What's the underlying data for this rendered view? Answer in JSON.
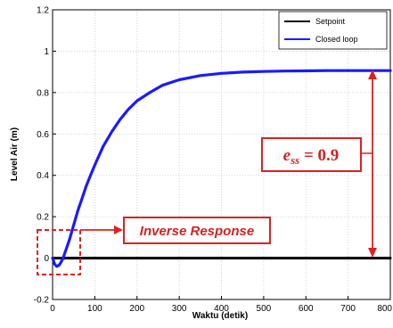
{
  "chart_data": {
    "type": "line",
    "title": "",
    "xlabel": "Waktu (detik)",
    "ylabel": "Level Air (m)",
    "xlim": [
      0,
      800
    ],
    "ylim": [
      -0.2,
      1.2
    ],
    "xticks": [
      "0",
      "100",
      "200",
      "300",
      "400",
      "500",
      "600",
      "700",
      "800"
    ],
    "yticks": [
      "-0.2",
      "0",
      "0.2",
      "0.4",
      "0.6",
      "0.8",
      "1",
      "1.2"
    ],
    "grid": true,
    "legend_position": "top-right",
    "series": [
      {
        "name": "Setpoint",
        "color": "#000000",
        "x": [
          0,
          800
        ],
        "y": [
          0,
          0
        ]
      },
      {
        "name": "Closed loop",
        "color": "#1a1aff",
        "x": [
          0,
          5,
          10,
          15,
          20,
          25,
          30,
          40,
          50,
          60,
          70,
          80,
          90,
          100,
          120,
          140,
          160,
          180,
          200,
          230,
          260,
          300,
          350,
          400,
          450,
          500,
          550,
          600,
          650,
          700,
          750,
          800
        ],
        "y": [
          0,
          -0.03,
          -0.04,
          -0.035,
          -0.02,
          0.0,
          0.03,
          0.09,
          0.16,
          0.23,
          0.29,
          0.35,
          0.4,
          0.45,
          0.54,
          0.61,
          0.67,
          0.72,
          0.76,
          0.8,
          0.835,
          0.862,
          0.882,
          0.893,
          0.899,
          0.902,
          0.904,
          0.905,
          0.906,
          0.906,
          0.906,
          0.906
        ]
      }
    ],
    "annotations": {
      "inverse_response": "Inverse Response",
      "ess_label": "e",
      "ess_subscript": "ss",
      "ess_value": " = 0.9"
    }
  }
}
